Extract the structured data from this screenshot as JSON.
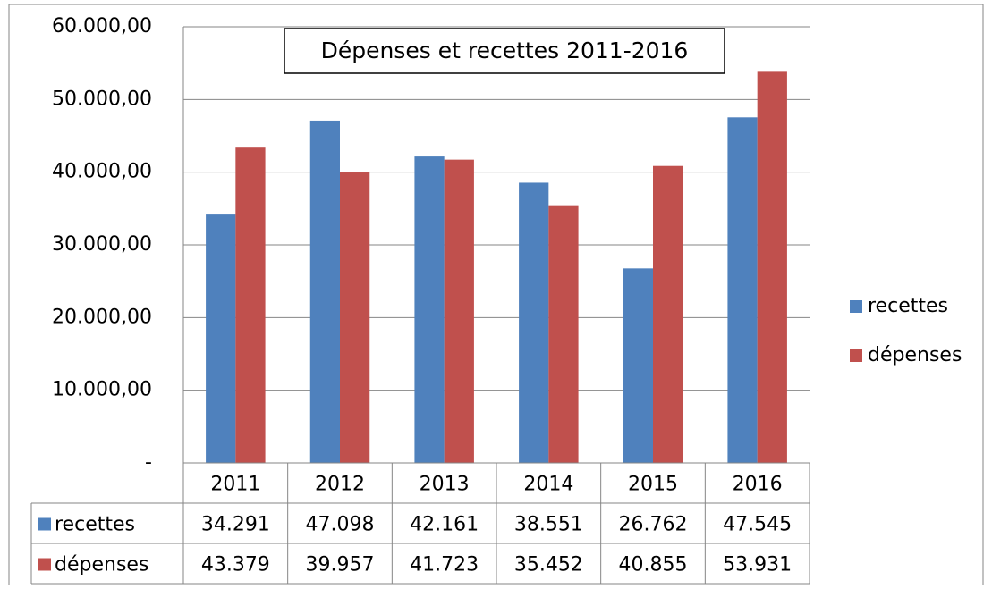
{
  "chart_data": {
    "type": "bar",
    "title": "Dépenses et recettes 2011-2016",
    "categories": [
      "2011",
      "2012",
      "2013",
      "2014",
      "2015",
      "2016"
    ],
    "series": [
      {
        "name": "recettes",
        "color": "#4f81bd",
        "values": [
          34291,
          47098,
          42161,
          38551,
          26762,
          47545
        ],
        "value_labels": [
          "34.291",
          "47.098",
          "42.161",
          "38.551",
          "26.762",
          "47.545"
        ]
      },
      {
        "name": "dépenses",
        "color": "#c0504d",
        "values": [
          43379,
          39957,
          41723,
          35452,
          40855,
          53931
        ],
        "value_labels": [
          "43.379",
          "39.957",
          "41.723",
          "35.452",
          "40.855",
          "53.931"
        ]
      }
    ],
    "ylim": [
      0,
      60000
    ],
    "yticks": [
      {
        "value": 0,
        "label": "-"
      },
      {
        "value": 10000,
        "label": "10.000,00"
      },
      {
        "value": 20000,
        "label": "20.000,00"
      },
      {
        "value": 30000,
        "label": "30.000,00"
      },
      {
        "value": 40000,
        "label": "40.000,00"
      },
      {
        "value": 50000,
        "label": "50.000,00"
      },
      {
        "value": 60000,
        "label": "60.000,00"
      }
    ],
    "grid": true,
    "legend": "right",
    "data_table": true
  }
}
